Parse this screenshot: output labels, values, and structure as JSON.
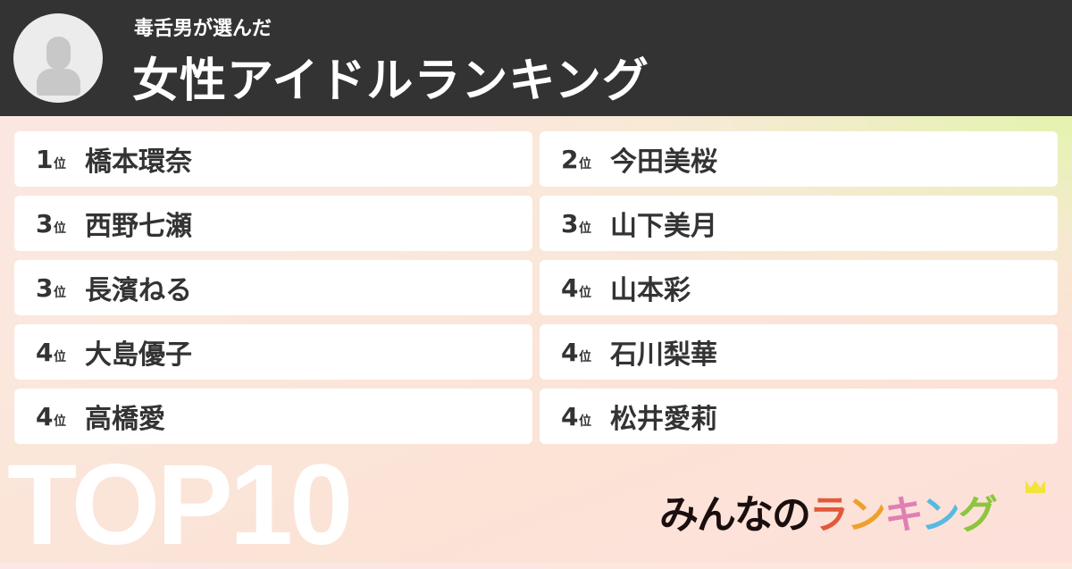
{
  "header": {
    "subtitle": "毒舌男が選んだ",
    "title": "女性アイドルランキング",
    "avatar_icon": "user-silhouette-icon"
  },
  "rankings": [
    {
      "rank": "1",
      "suffix": "位",
      "name": "橋本環奈"
    },
    {
      "rank": "2",
      "suffix": "位",
      "name": "今田美桜"
    },
    {
      "rank": "3",
      "suffix": "位",
      "name": "西野七瀬"
    },
    {
      "rank": "3",
      "suffix": "位",
      "name": "山下美月"
    },
    {
      "rank": "3",
      "suffix": "位",
      "name": "長濱ねる"
    },
    {
      "rank": "4",
      "suffix": "位",
      "name": "山本彩"
    },
    {
      "rank": "4",
      "suffix": "位",
      "name": "大島優子"
    },
    {
      "rank": "4",
      "suffix": "位",
      "name": "石川梨華"
    },
    {
      "rank": "4",
      "suffix": "位",
      "name": "高橋愛"
    },
    {
      "rank": "4",
      "suffix": "位",
      "name": "松井愛莉"
    }
  ],
  "footer": {
    "top_label": "TOP10",
    "logo": {
      "prefix": "みんなの",
      "letters": [
        "ラ",
        "ン",
        "キ",
        "ン",
        "グ"
      ],
      "colors": [
        "#e25a3a",
        "#eea12a",
        "#e07fb3",
        "#5ab8e0",
        "#8cc63f"
      ],
      "prefix_color": "#1a0e0e"
    }
  }
}
